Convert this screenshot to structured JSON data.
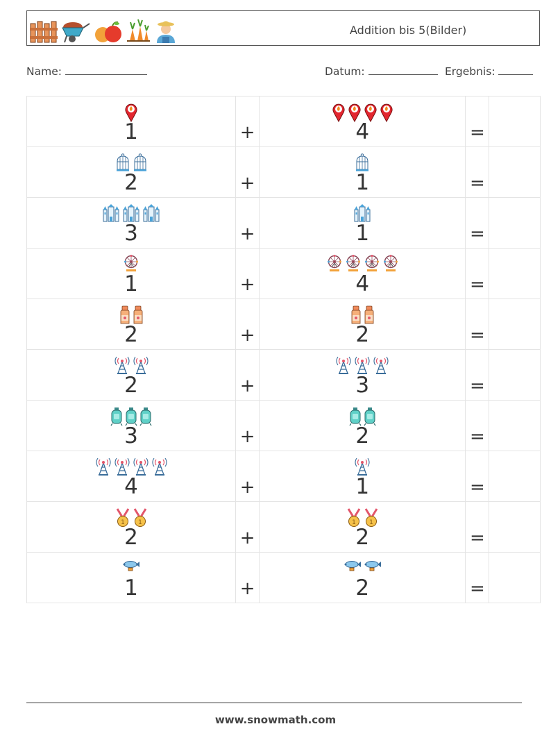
{
  "header": {
    "title": "Addition bis 5(Bilder)",
    "icons": [
      "fence-icon",
      "wheelbarrow-icon",
      "fruit-icon",
      "carrots-icon",
      "farmer-icon"
    ]
  },
  "fields": {
    "name_label": "Name:",
    "date_label": "Datum:",
    "result_label": "Ergebnis:"
  },
  "operators": {
    "plus": "+",
    "equals": "="
  },
  "problems": [
    {
      "left": 1,
      "left_icon": "location-pin-icon",
      "right": 4,
      "right_icon": "location-pin-icon"
    },
    {
      "left": 2,
      "left_icon": "birdcage-icon",
      "right": 1,
      "right_icon": "birdcage-icon"
    },
    {
      "left": 3,
      "left_icon": "castle-icon",
      "right": 1,
      "right_icon": "castle-icon"
    },
    {
      "left": 1,
      "left_icon": "ferris-wheel-icon",
      "right": 4,
      "right_icon": "ferris-wheel-icon"
    },
    {
      "left": 2,
      "left_icon": "sauce-bottle-icon",
      "right": 2,
      "right_icon": "sauce-bottle-icon"
    },
    {
      "left": 2,
      "left_icon": "radio-tower-icon",
      "right": 3,
      "right_icon": "radio-tower-icon"
    },
    {
      "left": 3,
      "left_icon": "gas-tank-icon",
      "right": 2,
      "right_icon": "gas-tank-icon"
    },
    {
      "left": 4,
      "left_icon": "radio-tower-icon",
      "right": 1,
      "right_icon": "radio-tower-icon"
    },
    {
      "left": 2,
      "left_icon": "medal-icon",
      "right": 2,
      "right_icon": "medal-icon"
    },
    {
      "left": 1,
      "left_icon": "airship-icon",
      "right": 2,
      "right_icon": "airship-icon"
    }
  ],
  "footer": {
    "website": "www.snowmath.com"
  }
}
